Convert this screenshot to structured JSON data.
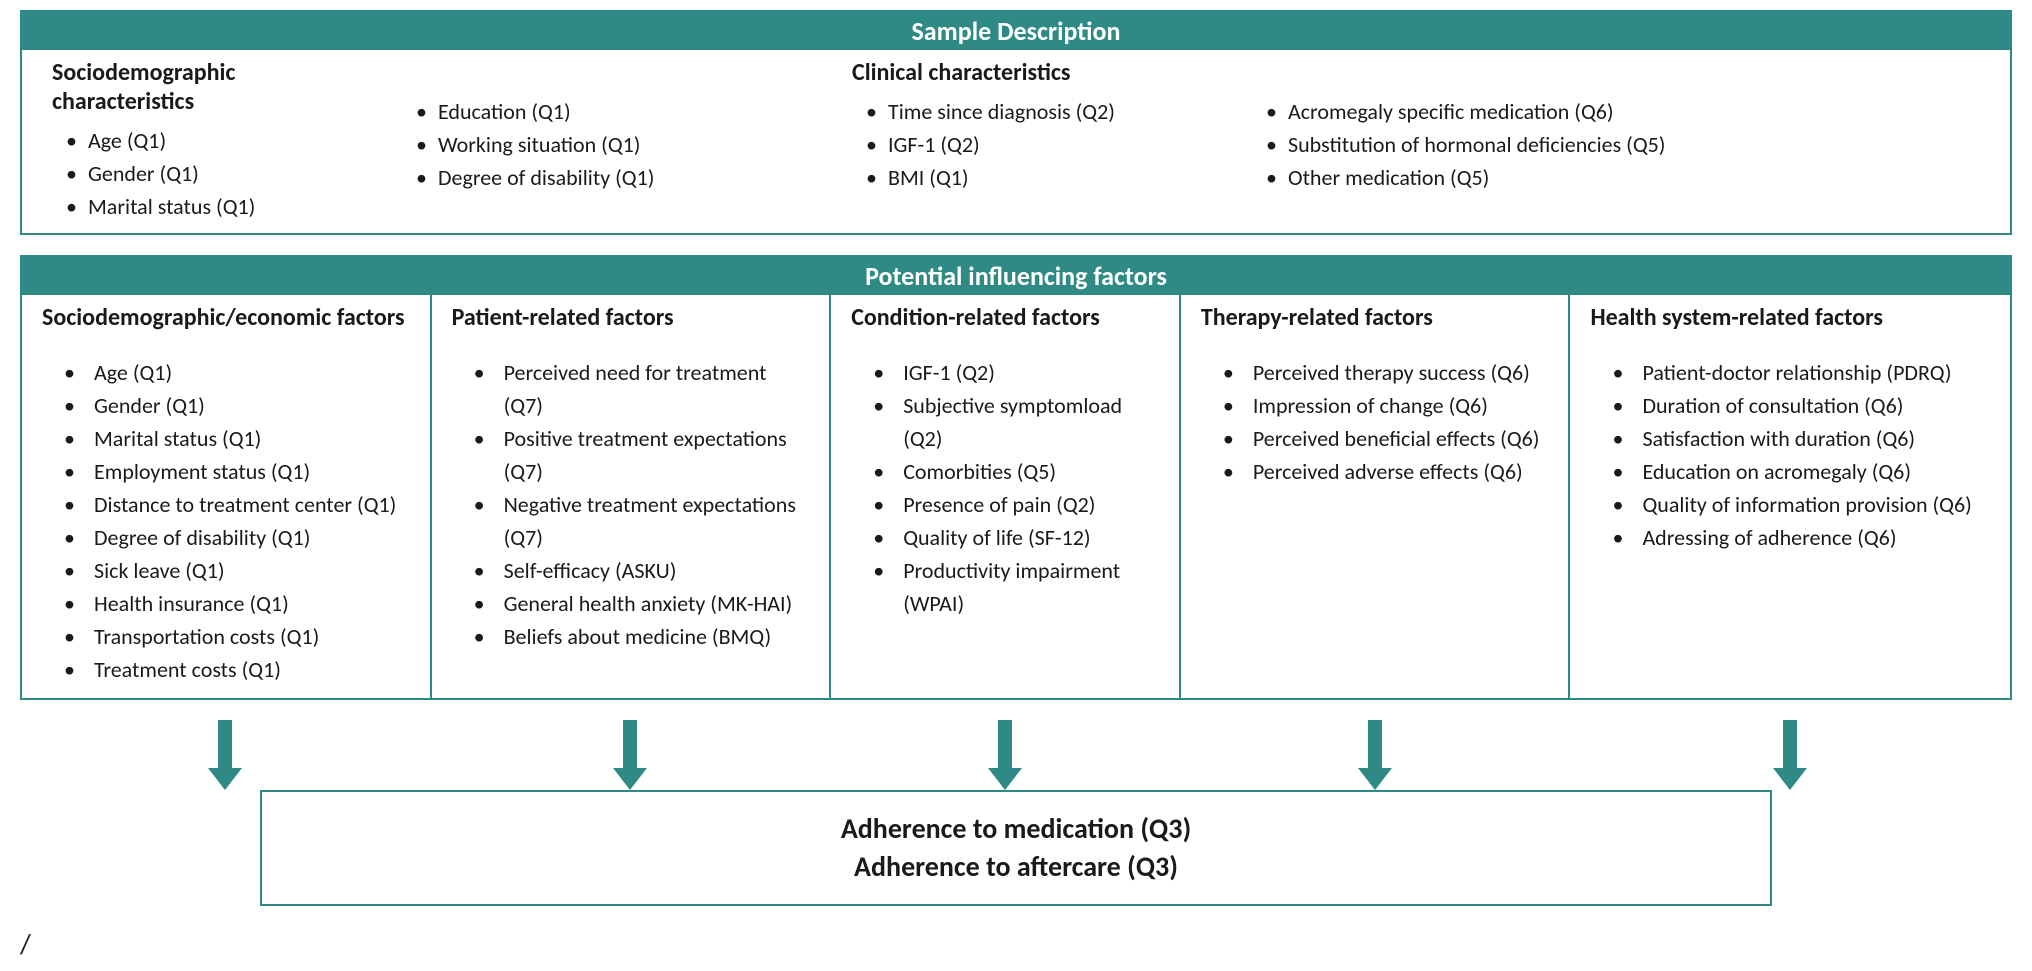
{
  "colors": {
    "border": "#2f8a85",
    "header_bg": "#2f8a85",
    "header_text": "#ffffff",
    "arrow": "#2f8a85",
    "text": "#1a1a1a"
  },
  "sample": {
    "title": "Sample Description",
    "socio_title": "Sociodemographic characteristics",
    "socio_col1": [
      "Age (Q1)",
      "Gender (Q1)",
      "Marital status (Q1)"
    ],
    "socio_col2": [
      "Education (Q1)",
      "Working situation (Q1)",
      "Degree of disability (Q1)"
    ],
    "clinical_title": "Clinical characteristics",
    "clinical_col1": [
      "Time since diagnosis (Q2)",
      "IGF-1 (Q2)",
      "BMI (Q1)"
    ],
    "clinical_col2": [
      "Acromegaly specific medication (Q6)",
      "Substitution of hormonal deficiencies (Q5)",
      "Other medication (Q5)"
    ]
  },
  "factors": {
    "title": "Potential influencing factors",
    "cols": [
      {
        "title": "Sociodemographic/economic factors",
        "items": [
          "Age (Q1)",
          "Gender (Q1)",
          "Marital status (Q1)",
          "Employment status (Q1)",
          "Distance to treatment center (Q1)",
          "Degree of disability (Q1)",
          "Sick leave (Q1)",
          "Health insurance (Q1)",
          "Transportation costs (Q1)",
          "Treatment costs (Q1)"
        ]
      },
      {
        "title": "Patient-related factors",
        "items": [
          "Perceived need for treatment (Q7)",
          "Positive treatment expectations (Q7)",
          "Negative treatment expectations (Q7)",
          "Self-efficacy (ASKU)",
          "General health anxiety (MK-HAI)",
          "Beliefs about medicine (BMQ)"
        ]
      },
      {
        "title": "Condition-related factors",
        "items": [
          "IGF-1 (Q2)",
          "Subjective symptomload (Q2)",
          "Comorbities (Q5)",
          "Presence of pain (Q2)",
          "Quality of life (SF-12)",
          "Productivity impairment (WPAI)"
        ]
      },
      {
        "title": "Therapy-related factors",
        "items": [
          "Perceived therapy success (Q6)",
          "Impression of change (Q6)",
          "Perceived beneficial effects (Q6)",
          "Perceived adverse effects (Q6)"
        ]
      },
      {
        "title": "Health system-related factors",
        "items": [
          "Patient-doctor relationship (PDRQ)",
          "Duration of consultation (Q6)",
          "Satisfaction with duration (Q6)",
          "Education on acromegaly (Q6)",
          "Quality of information provision (Q6)",
          "Adressing of adherence (Q6)"
        ]
      }
    ]
  },
  "arrows": {
    "widths": [
      410,
      400,
      350,
      390,
      440
    ],
    "arrow_svg_w": 40,
    "arrow_svg_h": 70,
    "shaft_w": 14,
    "head_w": 34,
    "head_h": 22,
    "color": "#2f8a85"
  },
  "outcome": {
    "line1": "Adherence to medication (Q3)",
    "line2": "Adherence to aftercare (Q3)"
  },
  "trailing_mark": "/"
}
